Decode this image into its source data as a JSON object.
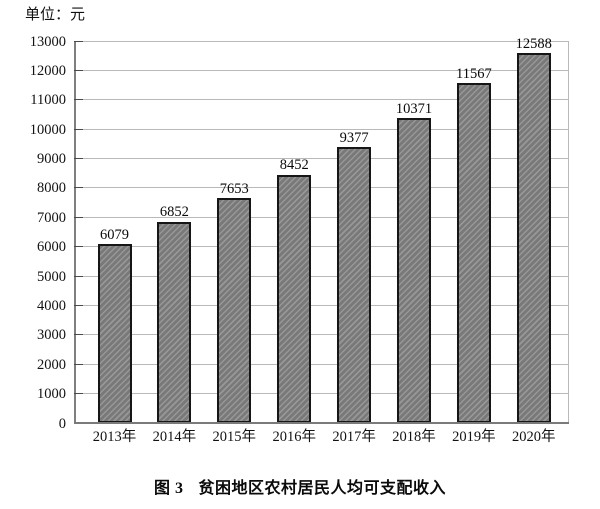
{
  "figure": {
    "unit_label": "单位：元",
    "caption_label": "图 3",
    "caption_title": "贫困地区农村居民人均可支配收入"
  },
  "chart_data": {
    "type": "bar",
    "title": "图 3 贫困地区农村居民人均可支配收入",
    "unit_label": "单位：元",
    "ylabel": "",
    "xlabel": "",
    "categories": [
      "2013年",
      "2014年",
      "2015年",
      "2016年",
      "2017年",
      "2018年",
      "2019年",
      "2020年"
    ],
    "values": [
      6079,
      6852,
      7653,
      8452,
      9377,
      10371,
      11567,
      12588
    ],
    "ylim": [
      0,
      13000
    ],
    "ytick_step": 1000,
    "grid": true,
    "legend": "none",
    "bar_fill_color": "#7d7d7d",
    "bar_hatch": "light-diagonal-stripes",
    "bar_border_color": "#161616",
    "gridline_color": "#b9b9b9",
    "axis_color": "#7f7f7f",
    "text_color": "#000000",
    "background_color": "#ffffff"
  }
}
